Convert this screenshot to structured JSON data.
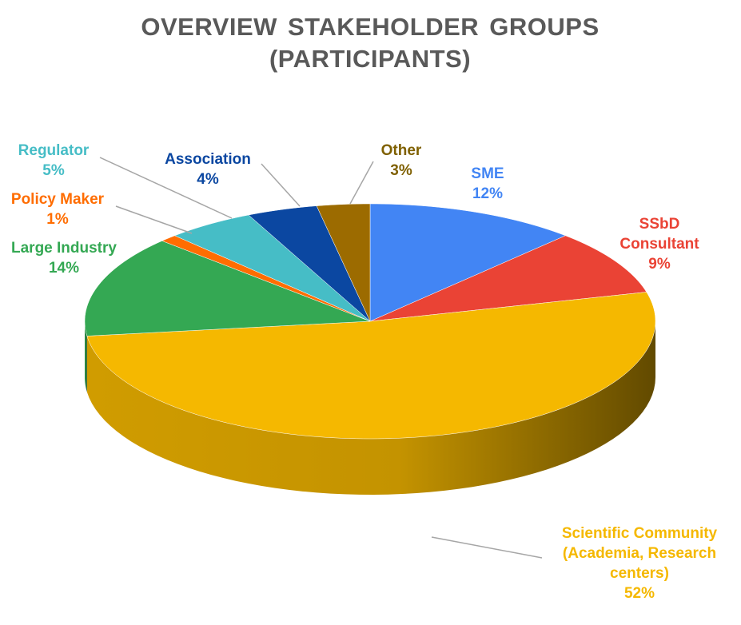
{
  "chart_data": {
    "type": "pie3d",
    "title": "OVERVIEW STAKEHOLDER GROUPS (PARTICIPANTS)",
    "categories": [
      "SME",
      "SSbD Consultant",
      "Scientific Community (Academia, Research centers)",
      "Large Industry",
      "Policy Maker",
      "Regulator",
      "Association",
      "Other"
    ],
    "values": [
      12,
      9,
      52,
      14,
      1,
      5,
      4,
      3
    ],
    "value_labels": [
      "12%",
      "9%",
      "52%",
      "14%",
      "1%",
      "5%",
      "4%",
      "3%"
    ],
    "colors": [
      "#4285f4",
      "#ea4335",
      "#f5b800",
      "#34a853",
      "#ff6d01",
      "#46bdc6",
      "#0b47a1",
      "#9c6b00"
    ]
  }
}
